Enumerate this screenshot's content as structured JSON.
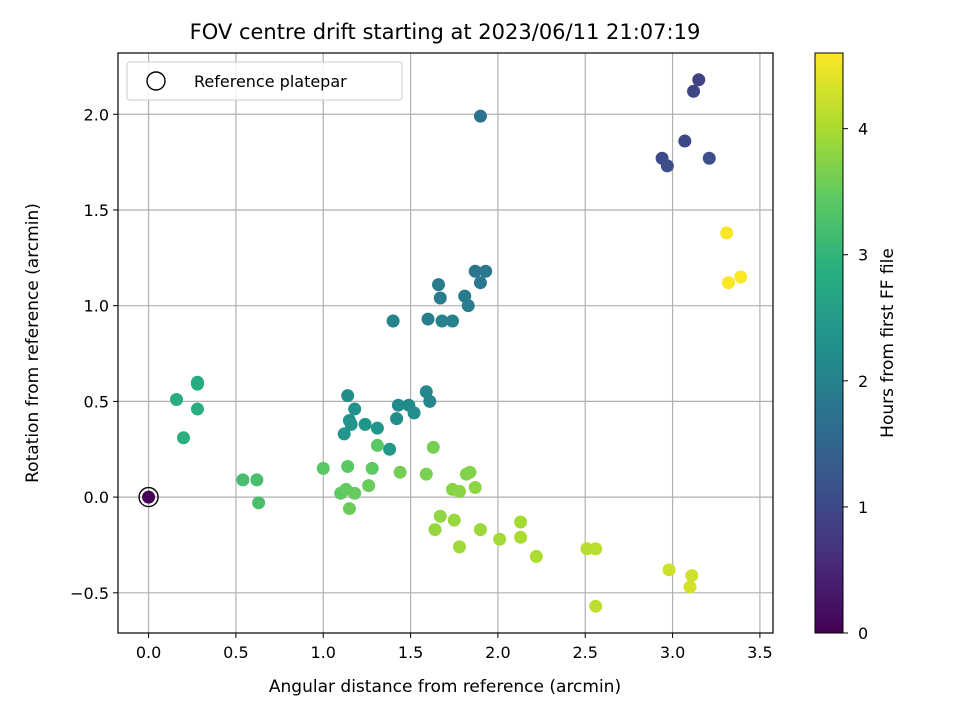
{
  "chart_data": {
    "type": "scatter",
    "title": "FOV centre drift starting at 2023/06/11 21:07:19",
    "xlabel": "Angular distance from reference (arcmin)",
    "ylabel": "Rotation from reference (arcmin)",
    "xlim": [
      -0.175,
      3.575
    ],
    "ylim": [
      -0.71,
      2.32
    ],
    "xticks": [
      0.0,
      0.5,
      1.0,
      1.5,
      2.0,
      2.5,
      3.0,
      3.5
    ],
    "xtick_labels": [
      "0.0",
      "0.5",
      "1.0",
      "1.5",
      "2.0",
      "2.5",
      "3.0",
      "3.5"
    ],
    "yticks": [
      -0.5,
      0.0,
      0.5,
      1.0,
      1.5,
      2.0
    ],
    "ytick_labels": [
      "−0.5",
      "0.0",
      "0.5",
      "1.0",
      "1.5",
      "2.0"
    ],
    "grid": true,
    "legend": {
      "placement": "upper-left",
      "entries": [
        {
          "label": "Reference platepar",
          "marker": "open-circle"
        }
      ]
    },
    "colorbar": {
      "label": "Hours from first FF file",
      "colormap": "viridis",
      "range": [
        0,
        4.6
      ],
      "ticks": [
        0,
        1,
        2,
        3,
        4
      ],
      "tick_labels": [
        "0",
        "1",
        "2",
        "3",
        "4"
      ]
    },
    "reference_point": {
      "x": 0.0,
      "y": 0.0,
      "hours": 0.0
    },
    "points": [
      {
        "x": 3.15,
        "y": 2.18,
        "hours": 0.9
      },
      {
        "x": 3.12,
        "y": 2.12,
        "hours": 0.95
      },
      {
        "x": 3.07,
        "y": 1.86,
        "hours": 1.0
      },
      {
        "x": 2.94,
        "y": 1.77,
        "hours": 1.05
      },
      {
        "x": 2.97,
        "y": 1.73,
        "hours": 1.08
      },
      {
        "x": 3.21,
        "y": 1.77,
        "hours": 1.1
      },
      {
        "x": 1.9,
        "y": 1.99,
        "hours": 1.75
      },
      {
        "x": 1.87,
        "y": 1.18,
        "hours": 1.8
      },
      {
        "x": 1.93,
        "y": 1.18,
        "hours": 1.82
      },
      {
        "x": 1.9,
        "y": 1.12,
        "hours": 1.85
      },
      {
        "x": 1.66,
        "y": 1.11,
        "hours": 1.88
      },
      {
        "x": 1.67,
        "y": 1.04,
        "hours": 1.9
      },
      {
        "x": 1.81,
        "y": 1.05,
        "hours": 1.92
      },
      {
        "x": 1.83,
        "y": 1.0,
        "hours": 1.95
      },
      {
        "x": 1.6,
        "y": 0.93,
        "hours": 1.97
      },
      {
        "x": 1.68,
        "y": 0.92,
        "hours": 2.0
      },
      {
        "x": 1.74,
        "y": 0.92,
        "hours": 2.02
      },
      {
        "x": 1.4,
        "y": 0.92,
        "hours": 2.05
      },
      {
        "x": 1.59,
        "y": 0.55,
        "hours": 2.1
      },
      {
        "x": 1.61,
        "y": 0.5,
        "hours": 2.12
      },
      {
        "x": 1.43,
        "y": 0.48,
        "hours": 2.15
      },
      {
        "x": 1.49,
        "y": 0.48,
        "hours": 2.17
      },
      {
        "x": 1.52,
        "y": 0.44,
        "hours": 2.2
      },
      {
        "x": 1.42,
        "y": 0.41,
        "hours": 2.22
      },
      {
        "x": 1.14,
        "y": 0.53,
        "hours": 2.25
      },
      {
        "x": 1.18,
        "y": 0.46,
        "hours": 2.3
      },
      {
        "x": 1.15,
        "y": 0.4,
        "hours": 2.32
      },
      {
        "x": 1.16,
        "y": 0.38,
        "hours": 2.35
      },
      {
        "x": 1.24,
        "y": 0.38,
        "hours": 2.37
      },
      {
        "x": 1.12,
        "y": 0.33,
        "hours": 2.4
      },
      {
        "x": 1.31,
        "y": 0.36,
        "hours": 2.42
      },
      {
        "x": 1.38,
        "y": 0.25,
        "hours": 2.45
      },
      {
        "x": 0.28,
        "y": 0.6,
        "hours": 2.8
      },
      {
        "x": 0.28,
        "y": 0.59,
        "hours": 2.82
      },
      {
        "x": 0.16,
        "y": 0.51,
        "hours": 2.85
      },
      {
        "x": 0.28,
        "y": 0.46,
        "hours": 2.87
      },
      {
        "x": 0.2,
        "y": 0.31,
        "hours": 2.9
      },
      {
        "x": 0.54,
        "y": 0.09,
        "hours": 3.2
      },
      {
        "x": 0.62,
        "y": 0.09,
        "hours": 3.22
      },
      {
        "x": 0.63,
        "y": -0.03,
        "hours": 3.25
      },
      {
        "x": 1.31,
        "y": 0.27,
        "hours": 3.4
      },
      {
        "x": 1.14,
        "y": 0.16,
        "hours": 3.42
      },
      {
        "x": 1.28,
        "y": 0.15,
        "hours": 3.45
      },
      {
        "x": 1.0,
        "y": 0.15,
        "hours": 3.4
      },
      {
        "x": 1.1,
        "y": 0.02,
        "hours": 3.45
      },
      {
        "x": 1.13,
        "y": 0.04,
        "hours": 3.47
      },
      {
        "x": 1.18,
        "y": 0.02,
        "hours": 3.5
      },
      {
        "x": 1.26,
        "y": 0.06,
        "hours": 3.52
      },
      {
        "x": 1.15,
        "y": -0.06,
        "hours": 3.55
      },
      {
        "x": 1.44,
        "y": 0.13,
        "hours": 3.6
      },
      {
        "x": 1.63,
        "y": 0.26,
        "hours": 3.62
      },
      {
        "x": 1.59,
        "y": 0.12,
        "hours": 3.65
      },
      {
        "x": 1.82,
        "y": 0.12,
        "hours": 3.7
      },
      {
        "x": 1.84,
        "y": 0.13,
        "hours": 3.72
      },
      {
        "x": 1.74,
        "y": 0.04,
        "hours": 3.75
      },
      {
        "x": 1.78,
        "y": 0.03,
        "hours": 3.77
      },
      {
        "x": 1.87,
        "y": 0.05,
        "hours": 3.8
      },
      {
        "x": 1.67,
        "y": -0.1,
        "hours": 3.82
      },
      {
        "x": 1.64,
        "y": -0.17,
        "hours": 3.85
      },
      {
        "x": 1.75,
        "y": -0.12,
        "hours": 3.87
      },
      {
        "x": 1.9,
        "y": -0.17,
        "hours": 3.9
      },
      {
        "x": 1.78,
        "y": -0.26,
        "hours": 3.92
      },
      {
        "x": 2.01,
        "y": -0.22,
        "hours": 3.95
      },
      {
        "x": 2.13,
        "y": -0.13,
        "hours": 3.97
      },
      {
        "x": 2.13,
        "y": -0.21,
        "hours": 4.0
      },
      {
        "x": 2.22,
        "y": -0.31,
        "hours": 4.02
      },
      {
        "x": 2.51,
        "y": -0.27,
        "hours": 4.1
      },
      {
        "x": 2.56,
        "y": -0.27,
        "hours": 4.12
      },
      {
        "x": 2.56,
        "y": -0.57,
        "hours": 4.15
      },
      {
        "x": 2.98,
        "y": -0.38,
        "hours": 4.25
      },
      {
        "x": 3.11,
        "y": -0.41,
        "hours": 4.28
      },
      {
        "x": 3.1,
        "y": -0.47,
        "hours": 4.3
      },
      {
        "x": 3.31,
        "y": 1.38,
        "hours": 4.55
      },
      {
        "x": 3.32,
        "y": 1.12,
        "hours": 4.57
      },
      {
        "x": 3.39,
        "y": 1.15,
        "hours": 4.58
      }
    ]
  }
}
